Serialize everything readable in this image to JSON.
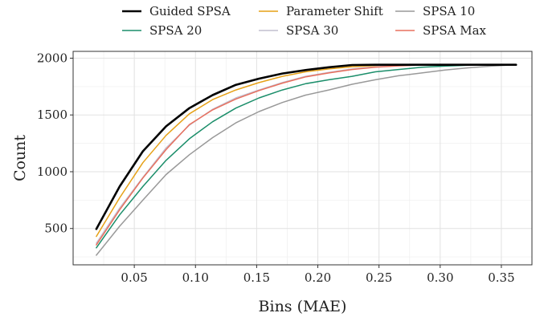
{
  "chart_data": {
    "type": "line",
    "xlabel": "Bins (MAE)",
    "ylabel": "Count",
    "xlim": [
      0.0,
      0.375
    ],
    "ylim": [
      180,
      2060
    ],
    "x_ticks": [
      0.05,
      0.1,
      0.15,
      0.2,
      0.25,
      0.3,
      0.35
    ],
    "x_tick_labels": [
      "0.05",
      "0.10",
      "0.15",
      "0.20",
      "0.25",
      "0.30",
      "0.35"
    ],
    "y_ticks": [
      500,
      1000,
      1500,
      2000
    ],
    "y_tick_labels": [
      "500",
      "1000",
      "1500",
      "2000"
    ],
    "grid": true,
    "legend_position": "top",
    "x": [
      0.019,
      0.038,
      0.057,
      0.076,
      0.095,
      0.114,
      0.133,
      0.152,
      0.171,
      0.19,
      0.209,
      0.228,
      0.247,
      0.266,
      0.285,
      0.304,
      0.323,
      0.342,
      0.362
    ],
    "series": [
      {
        "name": "Guided SPSA",
        "color": "#000000",
        "values": [
          495,
          870,
          1180,
          1400,
          1560,
          1675,
          1765,
          1820,
          1865,
          1895,
          1920,
          1940,
          1942,
          1942,
          1942,
          1942,
          1942,
          1942,
          1942
        ]
      },
      {
        "name": "Parameter Shift",
        "color": "#E6A117",
        "values": [
          430,
          770,
          1080,
          1320,
          1510,
          1635,
          1720,
          1785,
          1840,
          1880,
          1905,
          1925,
          1935,
          1940,
          1942,
          1942,
          1942,
          1942,
          1942
        ]
      },
      {
        "name": "SPSA 10",
        "color": "#999999",
        "values": [
          265,
          520,
          750,
          975,
          1150,
          1300,
          1430,
          1530,
          1610,
          1675,
          1720,
          1770,
          1810,
          1845,
          1870,
          1895,
          1915,
          1930,
          1942
        ]
      },
      {
        "name": "SPSA 20",
        "color": "#1B8E6A",
        "values": [
          330,
          620,
          870,
          1100,
          1290,
          1440,
          1560,
          1650,
          1720,
          1775,
          1810,
          1840,
          1880,
          1900,
          1920,
          1930,
          1938,
          1942,
          1942
        ]
      },
      {
        "name": "SPSA 30",
        "color": "#C2BFCF",
        "values": [
          370,
          680,
          950,
          1210,
          1410,
          1550,
          1650,
          1720,
          1785,
          1840,
          1875,
          1905,
          1925,
          1935,
          1940,
          1942,
          1942,
          1942,
          1942
        ]
      },
      {
        "name": "SPSA Max",
        "color": "#E8705E",
        "values": [
          355,
          665,
          945,
          1195,
          1415,
          1545,
          1640,
          1715,
          1780,
          1835,
          1870,
          1900,
          1920,
          1932,
          1940,
          1942,
          1942,
          1942,
          1942
        ]
      }
    ]
  }
}
